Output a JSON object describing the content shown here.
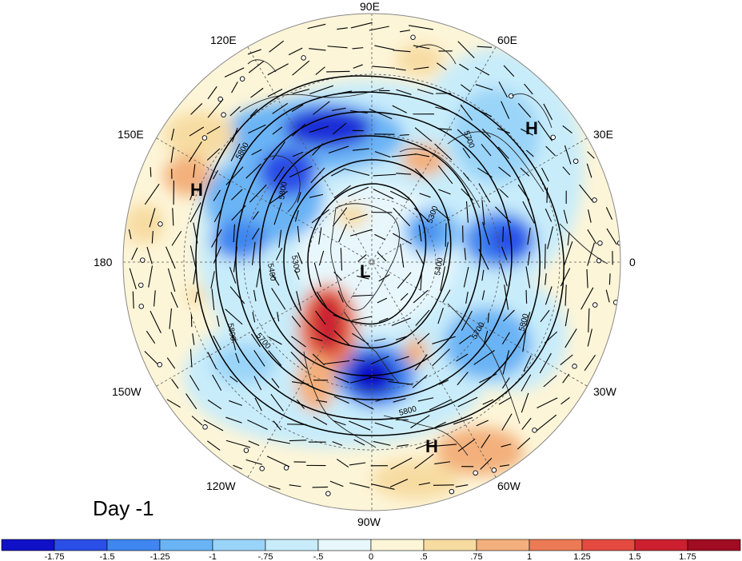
{
  "map": {
    "day_label": "Day -1",
    "longitude_labels": [
      "90E",
      "60E",
      "30E",
      "0",
      "30W",
      "60W",
      "90W",
      "120W",
      "150W",
      "180",
      "150E",
      "120E"
    ],
    "pressure_systems": [
      "H",
      "H",
      "H",
      "L"
    ],
    "contour_labels": [
      "5800",
      "5700",
      "5400",
      "5300",
      "5800",
      "5700",
      "5800",
      "5300",
      "5400",
      "5800",
      "5700",
      "5800"
    ]
  },
  "colorbar": {
    "tick_labels": [
      "-1.75",
      "-1.5",
      "-1.25",
      "-1",
      "-.75",
      "-.5",
      "0",
      ".5",
      ".75",
      "1",
      "1.25",
      "1.5",
      "1.75"
    ],
    "colors": [
      "#1010c8",
      "#2a4ee6",
      "#3f86f0",
      "#6ab4f5",
      "#9ad4f8",
      "#c8ecfa",
      "#e8f7fc",
      "#fdf5d8",
      "#f7dca2",
      "#f3b07c",
      "#ec7a55",
      "#e44a3f",
      "#cc2030",
      "#a00c22"
    ]
  },
  "field_colors": {
    "ocean_neutral": "#fdf5d8",
    "light_blue": "#c8ecfa",
    "blue": "#6ab4f5",
    "deep_blue": "#1a2ed8",
    "orange": "#f3b07c",
    "red": "#d8303a"
  }
}
